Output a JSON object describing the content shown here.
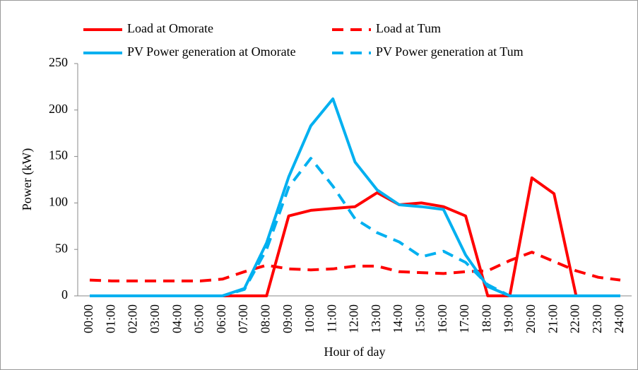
{
  "chart_data": {
    "type": "line",
    "x_label": "Hour of day",
    "y_label": "Power (kW)",
    "categories": [
      "00:00",
      "01:00",
      "02:00",
      "03:00",
      "04:00",
      "05:00",
      "06:00",
      "07:00",
      "08:00",
      "09:00",
      "10:00",
      "11:00",
      "12:00",
      "13:00",
      "14:00",
      "15:00",
      "16:00",
      "17:00",
      "18:00",
      "19:00",
      "20:00",
      "21:00",
      "22:00",
      "23:00",
      "24:00"
    ],
    "series": [
      {
        "name": "Load at Omorate",
        "color": "#ff0000",
        "linestyle": "solid",
        "values": [
          0,
          0,
          0,
          0,
          0,
          0,
          0,
          0,
          0,
          86,
          92,
          94,
          96,
          111,
          98,
          100,
          96,
          86,
          0,
          0,
          127,
          110,
          0,
          0,
          0
        ]
      },
      {
        "name": "Load at Tum",
        "color": "#ff0000",
        "linestyle": "dashed",
        "values": [
          17,
          16,
          16,
          16,
          16,
          16,
          18,
          26,
          33,
          29,
          28,
          29,
          32,
          32,
          26,
          25,
          24,
          26,
          27,
          38,
          47,
          37,
          27,
          20,
          17
        ]
      },
      {
        "name": "PV Power generation at Omorate",
        "color": "#00b0f0",
        "linestyle": "solid",
        "values": [
          0,
          0,
          0,
          0,
          0,
          0,
          0,
          8,
          57,
          128,
          183,
          212,
          144,
          114,
          98,
          96,
          93,
          44,
          10,
          0,
          0,
          0,
          0,
          0,
          0
        ]
      },
      {
        "name": "PV Power generation at Tum",
        "color": "#00b0f0",
        "linestyle": "dashed",
        "values": [
          0,
          0,
          0,
          0,
          0,
          0,
          0,
          7,
          50,
          117,
          148,
          118,
          83,
          68,
          58,
          42,
          48,
          36,
          12,
          0,
          0,
          0,
          0,
          0,
          0
        ]
      }
    ],
    "ylim": [
      0,
      250
    ],
    "yticks": [
      0,
      50,
      100,
      150,
      200,
      250
    ],
    "grid": false
  }
}
